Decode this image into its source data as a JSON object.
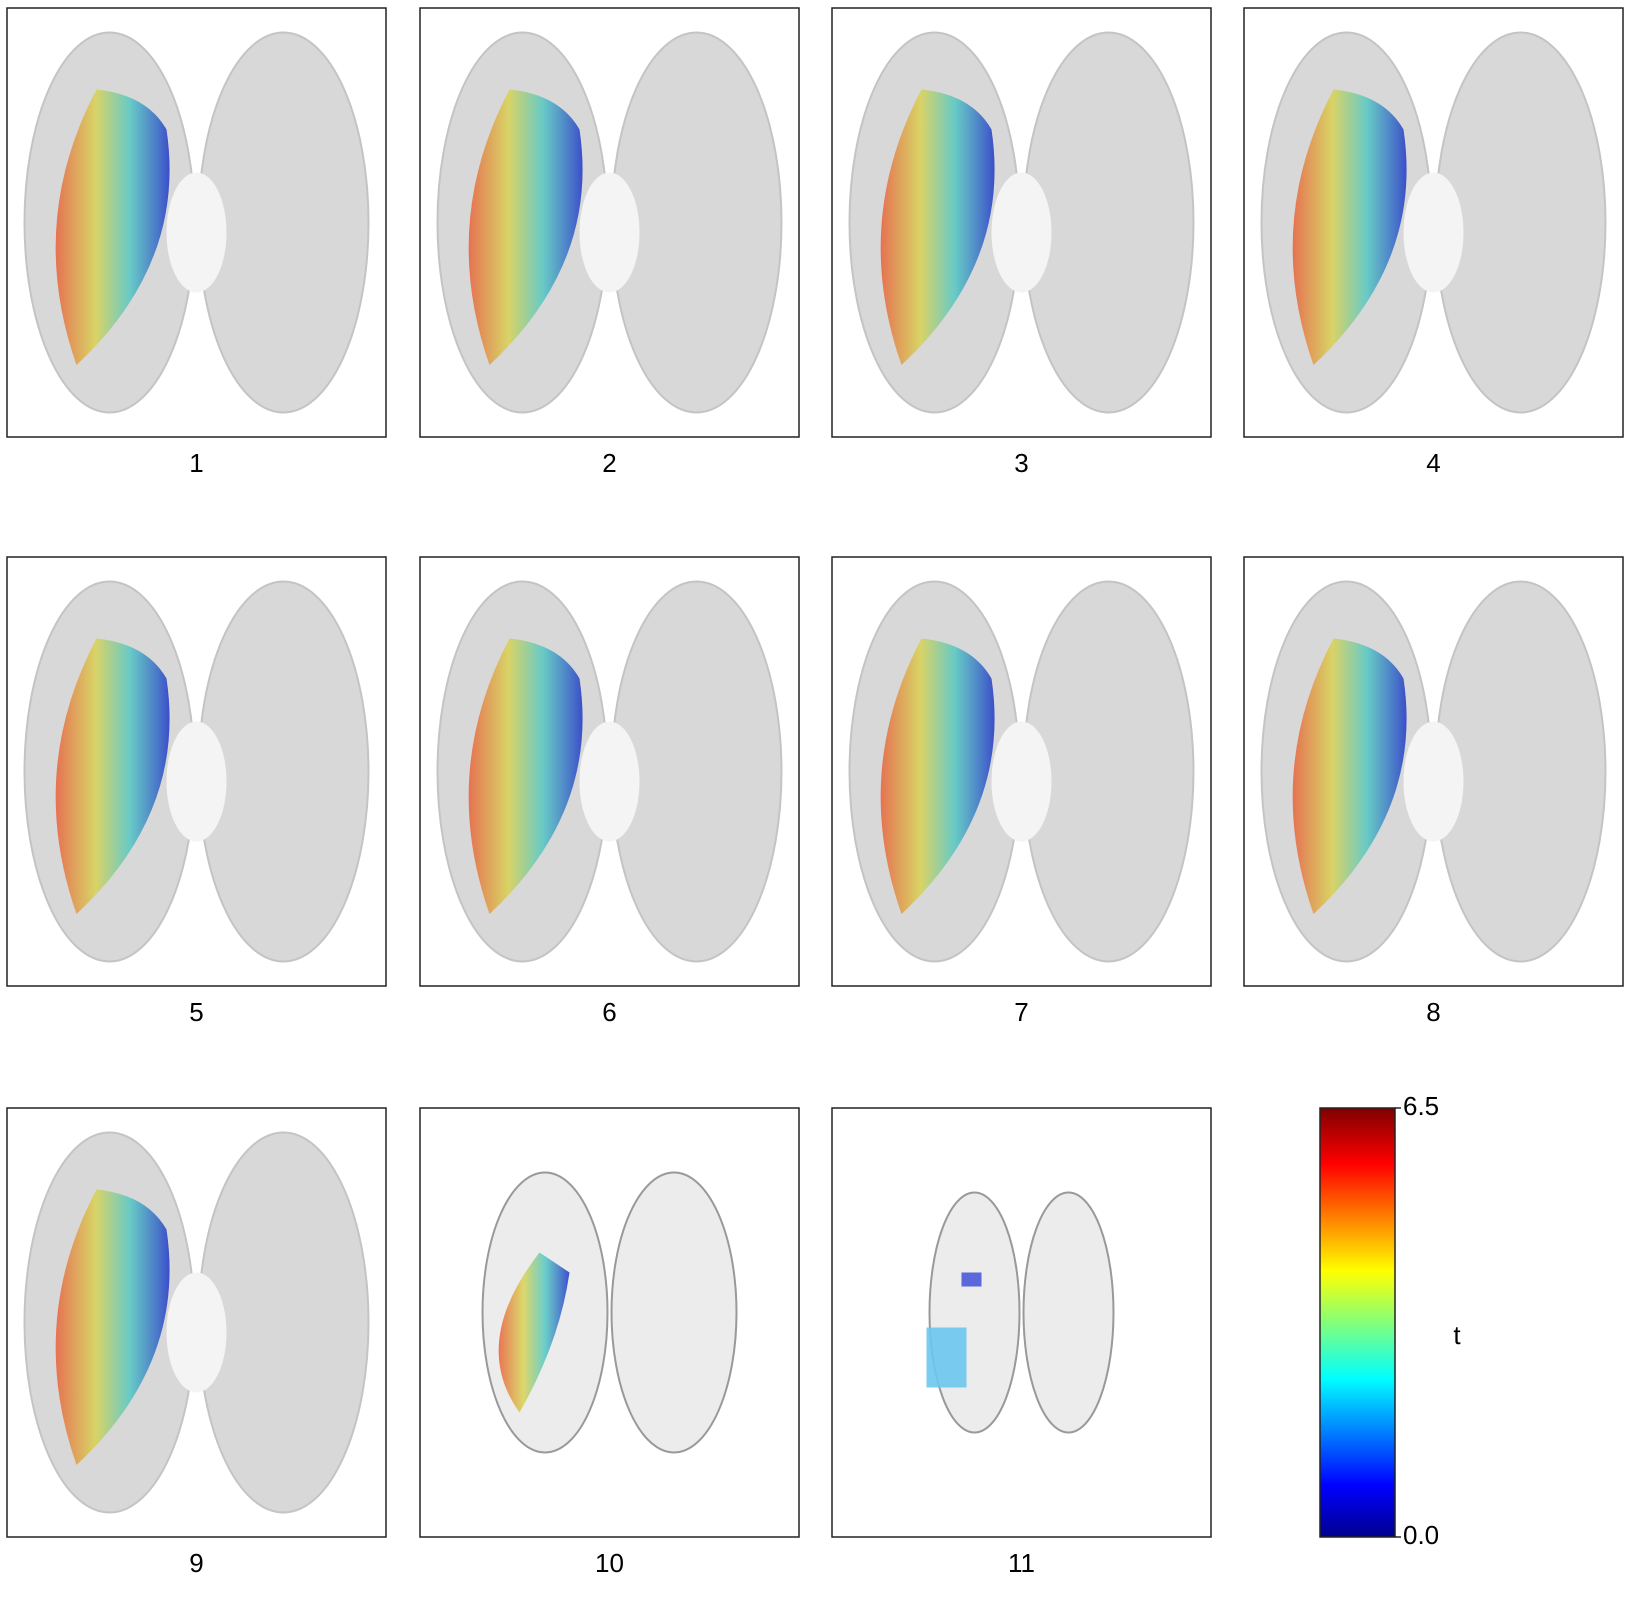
{
  "panels": [
    {
      "label": "1"
    },
    {
      "label": "2"
    },
    {
      "label": "3"
    },
    {
      "label": "4"
    },
    {
      "label": "5"
    },
    {
      "label": "6"
    },
    {
      "label": "7"
    },
    {
      "label": "8"
    },
    {
      "label": "9"
    },
    {
      "label": "10"
    },
    {
      "label": "11"
    }
  ],
  "colorbar": {
    "label": "t",
    "ticks": [
      {
        "value": 0,
        "label": "0.0"
      },
      6.5
    ]
  }
}
